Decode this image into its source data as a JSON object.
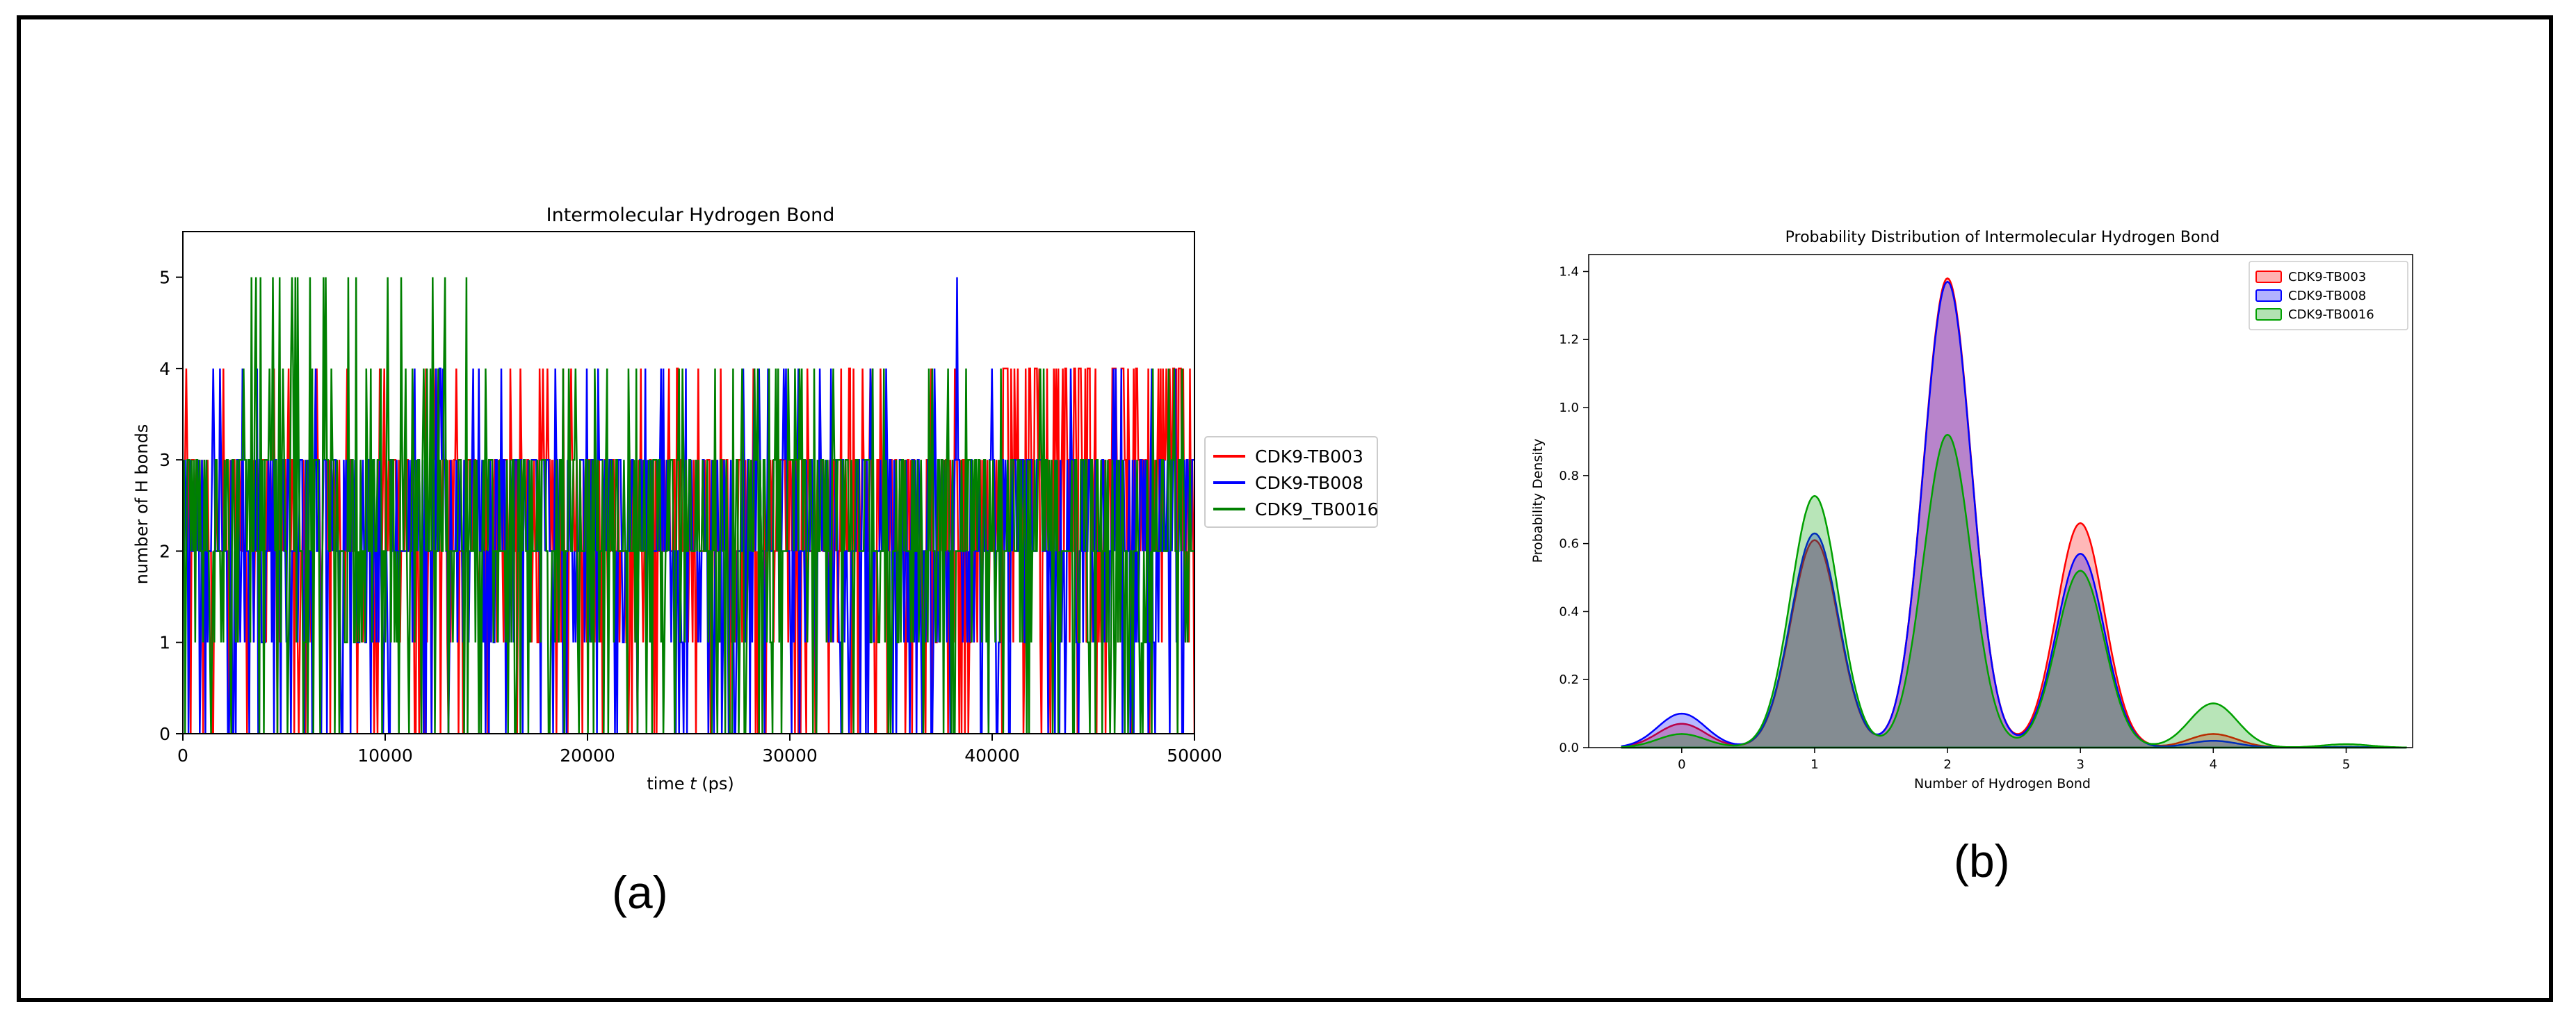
{
  "figure": {
    "label_a": "(a)",
    "label_b": "(b)"
  },
  "chart_data": [
    {
      "type": "line",
      "title": "Intermolecular Hydrogen Bond",
      "xlabel": "time t (ps)",
      "ylabel": "number of H bonds",
      "xlim": [
        0,
        50000
      ],
      "ylim": [
        0,
        5.5
      ],
      "xticks": [
        "0",
        "10000",
        "20000",
        "30000",
        "40000",
        "50000"
      ],
      "yticks": [
        "0",
        "1",
        "2",
        "3",
        "4",
        "5"
      ],
      "legend_position": "outside-right",
      "grid": false,
      "series": [
        {
          "name": "CDK9-TB003",
          "color": "#ff0000",
          "typical_range": [
            1,
            3
          ],
          "max": 4
        },
        {
          "name": "CDK9-TB008",
          "color": "#0000ff",
          "typical_range": [
            1,
            3
          ],
          "max": 5,
          "spike_at": 38200
        },
        {
          "name": "CDK9_TB0016",
          "color": "#008000",
          "typical_range": [
            1,
            3
          ],
          "max": 5
        }
      ]
    },
    {
      "type": "area",
      "title": "Probability Distribution of Intermolecular Hydrogen Bond",
      "xlabel": "Number of Hydrogen Bond",
      "ylabel": "Probability Density",
      "xlim": [
        -0.7,
        5.5
      ],
      "ylim": [
        0,
        1.45
      ],
      "xticks": [
        "0",
        "1",
        "2",
        "3",
        "4",
        "5"
      ],
      "yticks": [
        "0.0",
        "0.2",
        "0.4",
        "0.6",
        "0.8",
        "1.0",
        "1.2",
        "1.4"
      ],
      "legend_position": "top-right",
      "grid": false,
      "x": [
        0,
        1,
        2,
        3,
        4,
        5
      ],
      "series": [
        {
          "name": "CDK9-TB003",
          "color": "#ff0000",
          "values": [
            0.07,
            0.61,
            1.38,
            0.66,
            0.04,
            0.002
          ]
        },
        {
          "name": "CDK9-TB008",
          "color": "#0000ff",
          "values": [
            0.1,
            0.63,
            1.37,
            0.57,
            0.02,
            0.002
          ]
        },
        {
          "name": "CDK9-TB0016",
          "color": "#00a000",
          "values": [
            0.04,
            0.74,
            0.92,
            0.52,
            0.13,
            0.01
          ]
        }
      ]
    }
  ]
}
